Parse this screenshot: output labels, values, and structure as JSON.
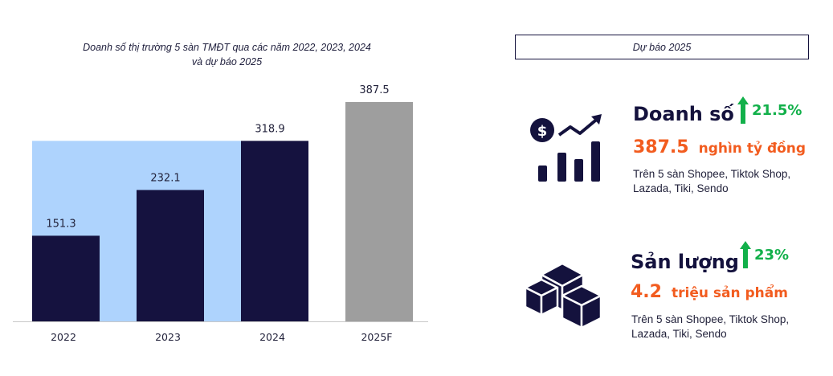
{
  "chart_data": {
    "type": "bar",
    "title": "Doanh số thị trường 5 sàn TMĐT qua các năm 2022, 2023, 2024 và dự báo 2025",
    "title_lines": [
      "Doanh số thị trường 5 sàn TMĐT qua các năm 2022, 2023, 2024",
      "và dự báo 2025"
    ],
    "categories": [
      "2022",
      "2023",
      "2024",
      "2025F"
    ],
    "values": [
      151.3,
      232.1,
      318.9,
      387.5
    ],
    "value_labels": [
      "151.3",
      "232.1",
      "318.9",
      "387.5"
    ],
    "xlabel": "",
    "ylabel": "",
    "ylim": [
      0,
      387.5
    ],
    "grid": false,
    "legend": "none",
    "colors": {
      "actual": "#15123f",
      "forecast": "#9e9e9e",
      "background_band": "#aed3fd",
      "axis": "#c8c8c8"
    }
  },
  "forecast_panel": {
    "title": "Dự báo 2025",
    "items": [
      {
        "icon": "revenue-chart-icon",
        "heading": "Doanh số",
        "growth": "21.5%",
        "value": "387.5",
        "unit": "nghìn tỷ đồng",
        "note": "Trên 5 sàn Shopee, Tiktok Shop, Lazada, Tiki, Sendo"
      },
      {
        "icon": "boxes-icon",
        "heading": "Sản lượng",
        "growth": "23%",
        "value": "4.2",
        "unit": "triệu sản phẩm",
        "note": "Trên 5 sàn Shopee, Tiktok Shop, Lazada, Tiki, Sendo"
      }
    ],
    "colors": {
      "growth": "#12b04a",
      "value": "#f25c1f",
      "dark": "#14123d"
    }
  }
}
